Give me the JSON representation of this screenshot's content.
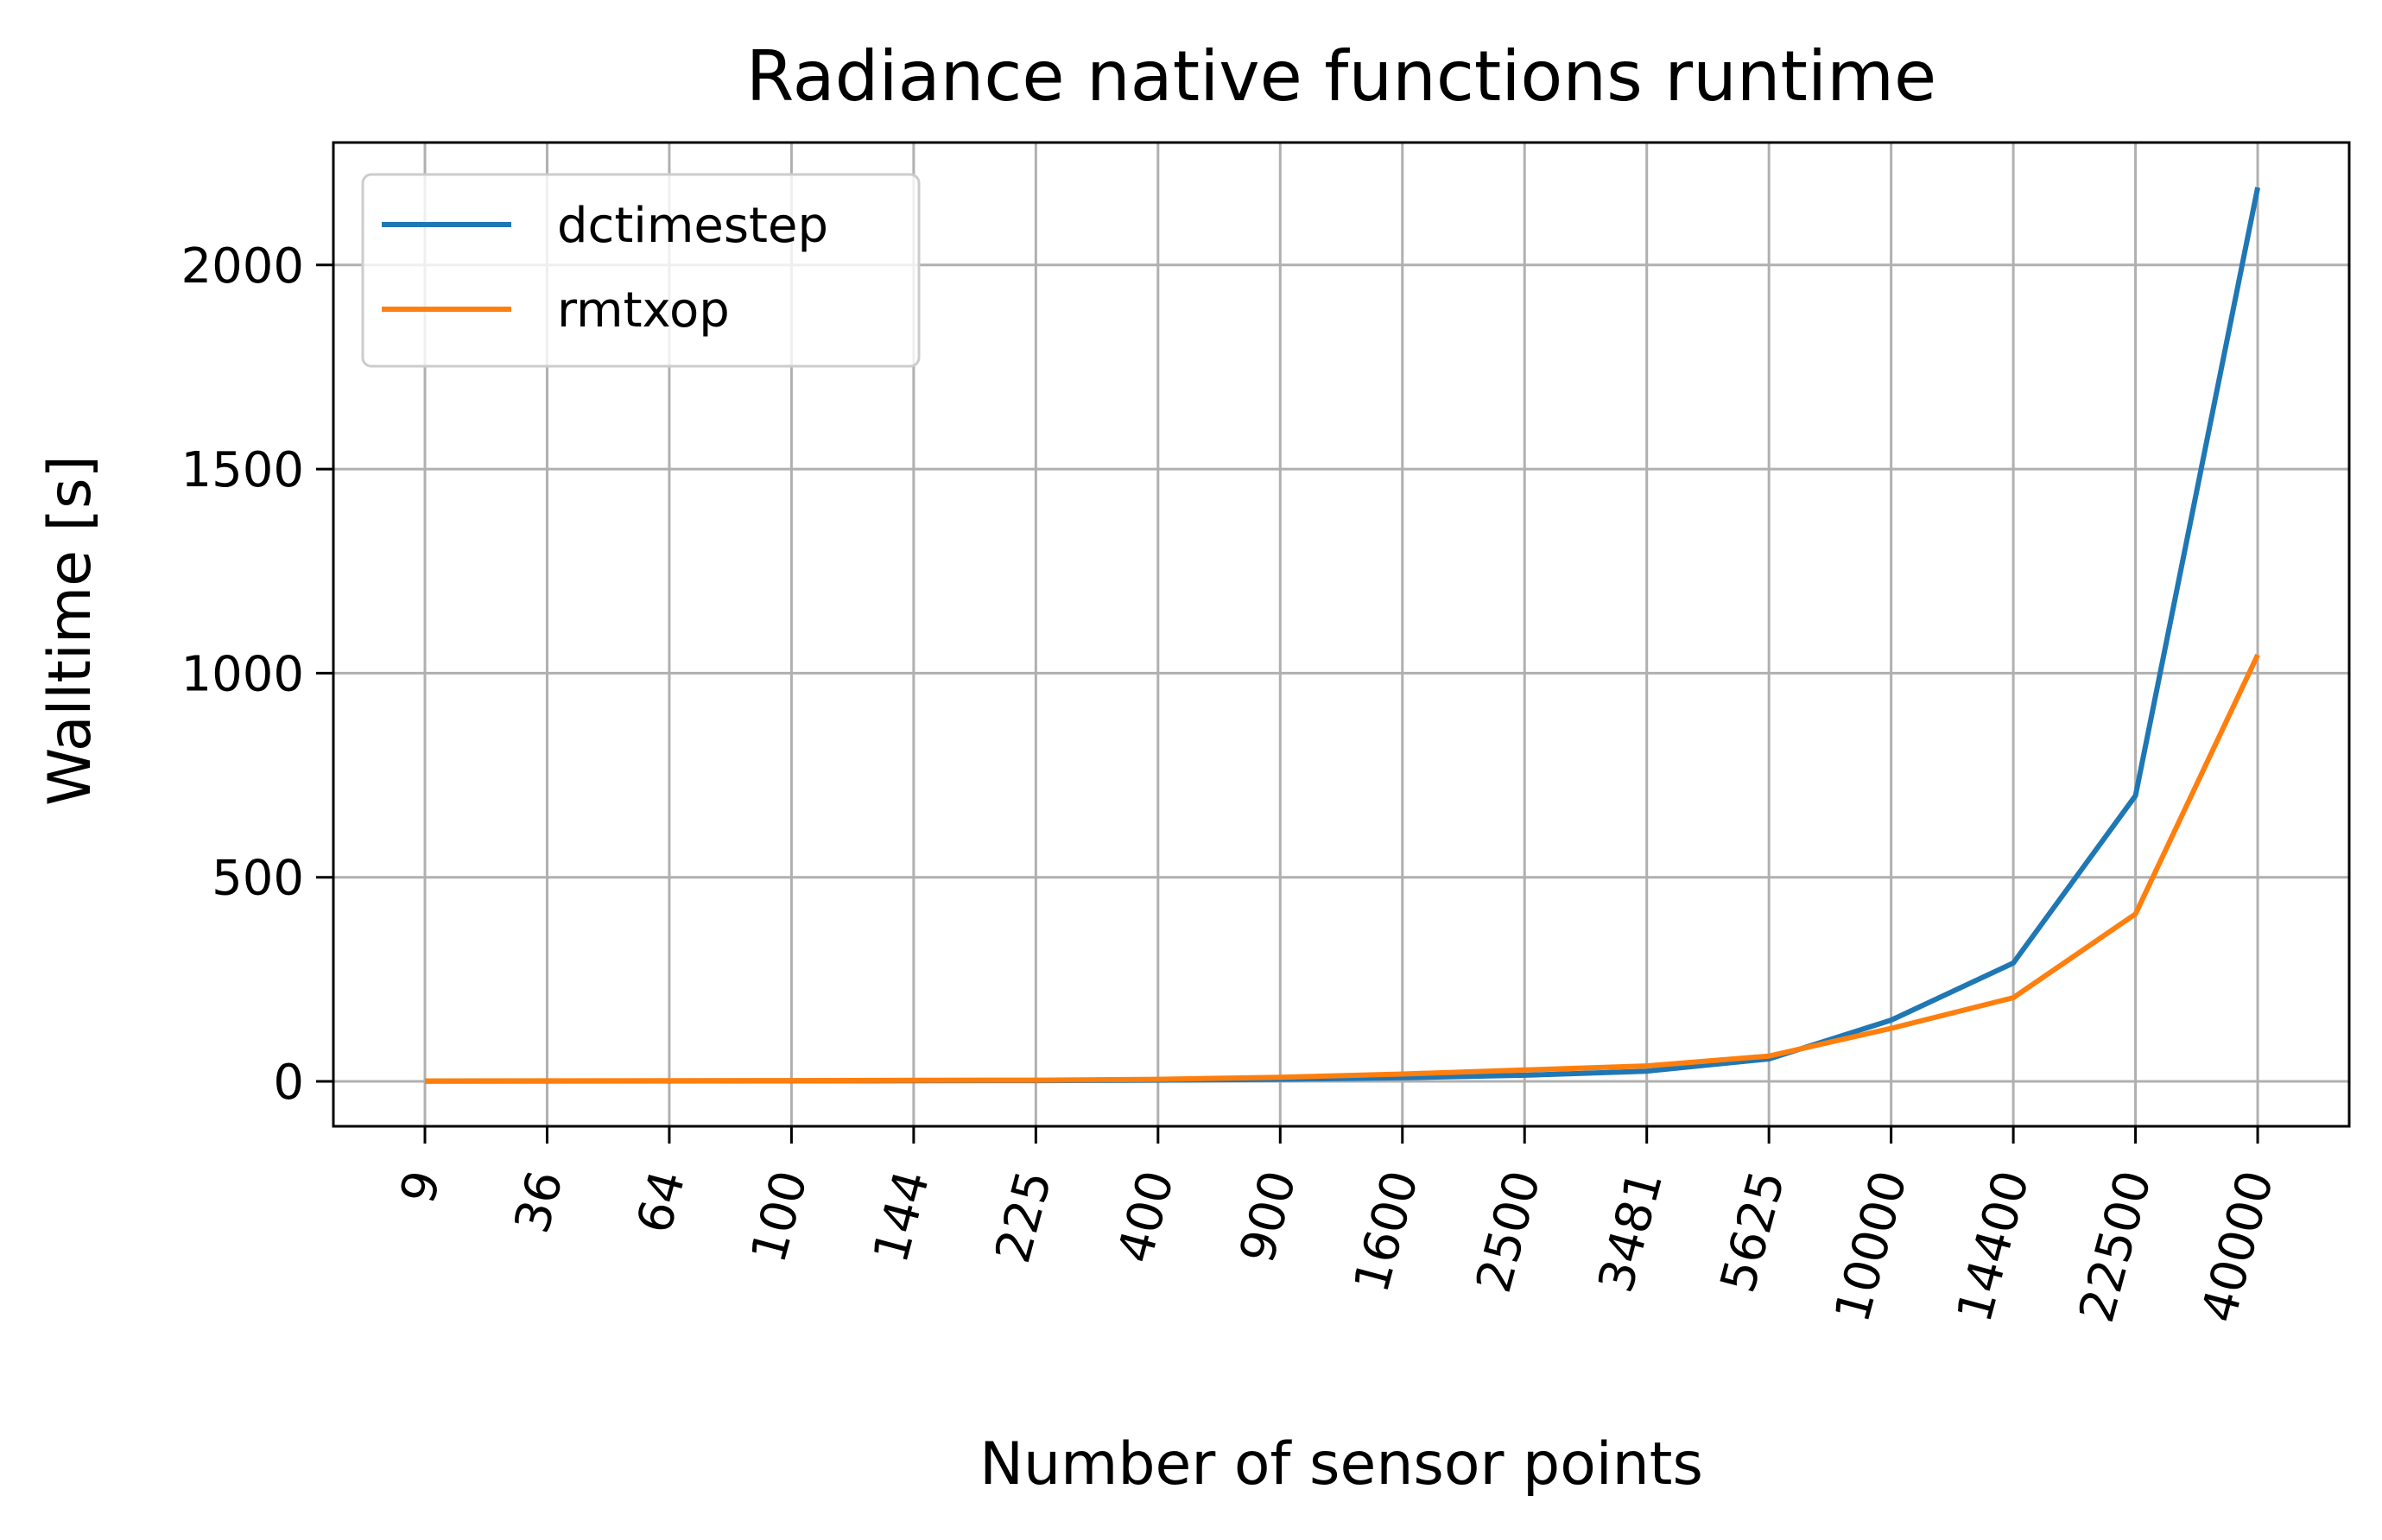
{
  "chart_data": {
    "type": "line",
    "title": "Radiance native functions runtime",
    "xlabel": "Number of sensor points",
    "ylabel": "Walltime [s]",
    "categories": [
      "9",
      "36",
      "64",
      "100",
      "144",
      "225",
      "400",
      "900",
      "1600",
      "2500",
      "3481",
      "5625",
      "10000",
      "14400",
      "22500",
      "40000"
    ],
    "yticks": [
      0,
      500,
      1000,
      1500,
      2000
    ],
    "ylim": [
      -110,
      2300
    ],
    "grid": true,
    "legend_position": "upper-left",
    "series": [
      {
        "name": "dctimestep",
        "color": "#1f77b4",
        "values": [
          0.5,
          0.8,
          1,
          1.2,
          1.5,
          2,
          3,
          5,
          9,
          15,
          25,
          55,
          150,
          290,
          700,
          2190
        ]
      },
      {
        "name": "rmtxop",
        "color": "#ff7f0e",
        "values": [
          1,
          1.2,
          1.5,
          2,
          2.5,
          3,
          5,
          10,
          18,
          28,
          38,
          62,
          130,
          205,
          410,
          1045
        ]
      }
    ]
  }
}
